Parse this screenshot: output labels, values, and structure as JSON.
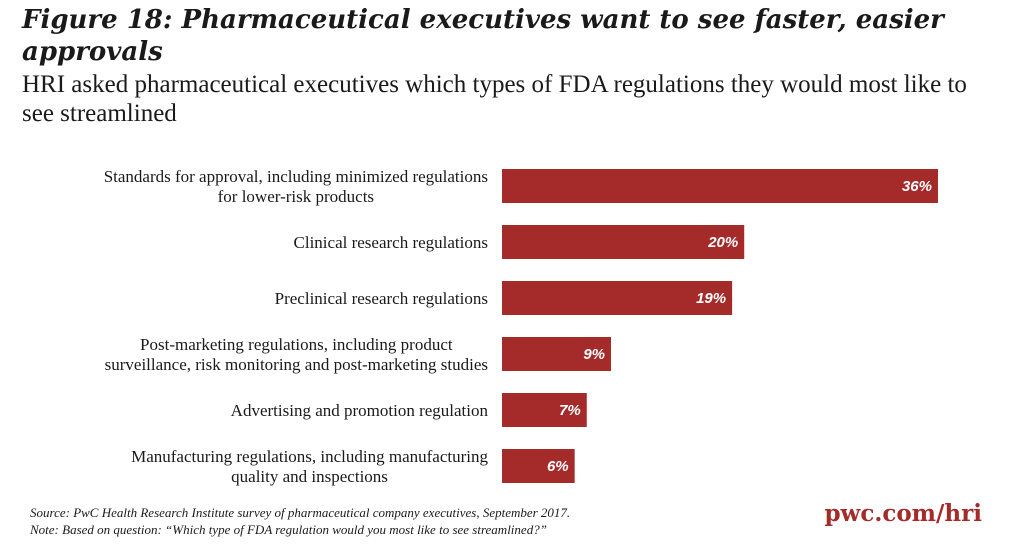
{
  "header": {
    "title": "Figure 18: Pharmaceutical executives want to see faster, easier approvals",
    "subtitle": "HRI asked pharmaceutical executives which types of FDA regulations they would most like to see streamlined"
  },
  "footer": {
    "source": "Source: PwC Health Research Institute survey of pharmaceutical company executives, September 2017.",
    "note": "Note: Based on question: “Which type of FDA regulation would you most like to see streamlined?”",
    "brand": "pwc.com/hri"
  },
  "colors": {
    "bar": "#a52a2a",
    "bar_label": "#ffffff"
  },
  "chart_data": {
    "type": "bar",
    "orientation": "horizontal",
    "categories": [
      [
        "Standards for approval, including minimized regulations",
        "for lower-risk products"
      ],
      [
        "Clinical research regulations"
      ],
      [
        "Preclinical research regulations"
      ],
      [
        "Post-marketing regulations, including product",
        "surveillance, risk monitoring and post-marketing studies"
      ],
      [
        "Advertising and promotion regulation"
      ],
      [
        "Manufacturing regulations, including manufacturing",
        "quality and inspections"
      ]
    ],
    "values": [
      36,
      20,
      19,
      9,
      7,
      6
    ],
    "value_labels": [
      "36%",
      "20%",
      "19%",
      "9%",
      "7%",
      "6%"
    ],
    "unit": "%",
    "xlim": [
      0,
      36
    ],
    "grid": false,
    "legend": "none"
  }
}
